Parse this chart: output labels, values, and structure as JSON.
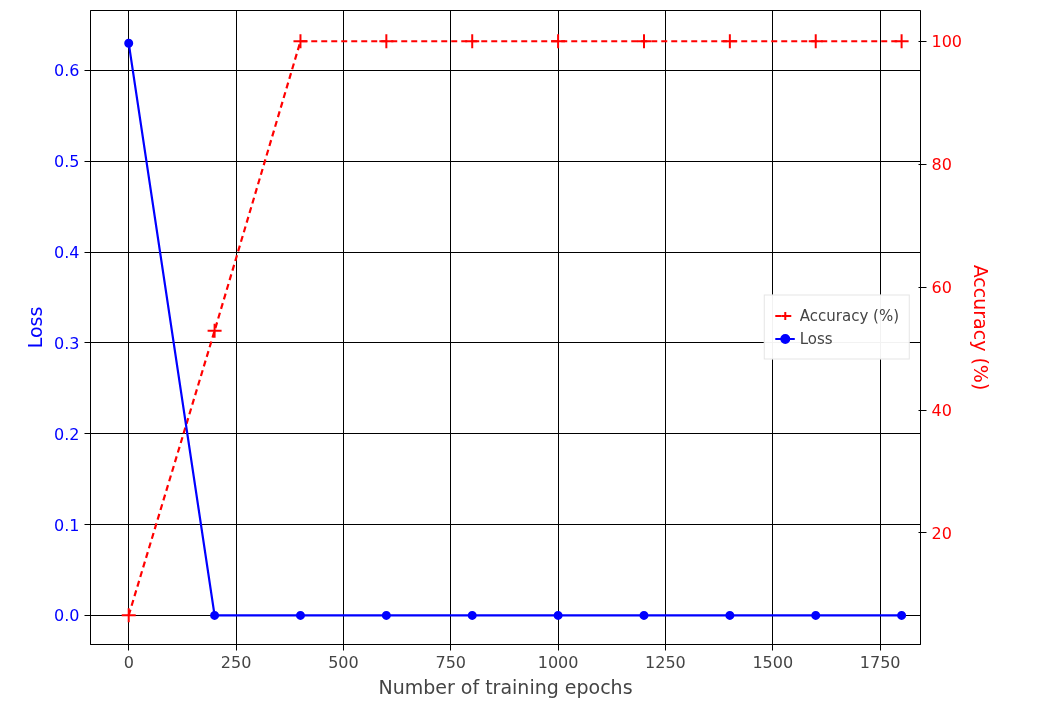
{
  "chart_data": {
    "type": "line",
    "xlabel": "Number of training epochs",
    "ylabel": "Loss",
    "y2label": "Accuracy (%)",
    "x": [
      0,
      200,
      400,
      600,
      800,
      1000,
      1200,
      1400,
      1600,
      1800
    ],
    "series": [
      {
        "name": "Accuracy (%)",
        "color": "#ff0000",
        "axis": "y2",
        "marker": "cross",
        "line_style": "dashed",
        "values": [
          6.6,
          52.9,
          100,
          100,
          100,
          100,
          100,
          100,
          100,
          100
        ]
      },
      {
        "name": "Loss",
        "color": "#0000ff",
        "marker": "circle",
        "line_style": "solid",
        "values": [
          0.63,
          0,
          0,
          0,
          0,
          0,
          0,
          0,
          0,
          0
        ]
      }
    ],
    "xlim": [
      -89,
      1844
    ],
    "xticks": [
      0,
      250,
      500,
      750,
      1000,
      1250,
      1500,
      1750
    ],
    "ylim": [
      -0.032,
      0.666
    ],
    "yticks": [
      {
        "value": 0,
        "label": "0.0"
      },
      0.1,
      0.2,
      0.3,
      0.4,
      0.5,
      0.6
    ],
    "y2lim": [
      1.85,
      105
    ],
    "y2ticks": [
      20,
      40,
      60,
      80,
      100
    ],
    "grid": true,
    "legend": "center right"
  }
}
